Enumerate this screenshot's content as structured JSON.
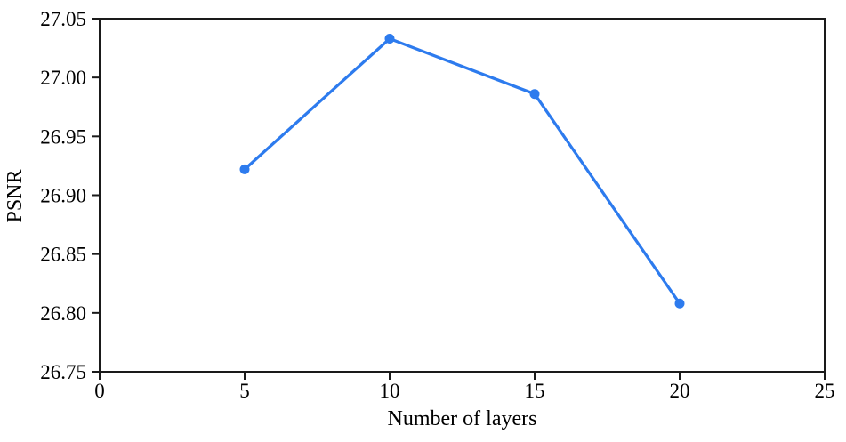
{
  "chart_data": {
    "type": "line",
    "title": "",
    "xlabel": "Number of layers",
    "ylabel": "PSNR",
    "x": [
      5,
      10,
      15,
      20
    ],
    "y": [
      26.922,
      27.033,
      26.986,
      26.808
    ],
    "series": [
      {
        "name": "PSNR",
        "x": [
          5,
          10,
          15,
          20
        ],
        "values": [
          26.922,
          27.033,
          26.986,
          26.808
        ]
      }
    ],
    "xlim": [
      0,
      25
    ],
    "ylim": [
      26.75,
      27.05
    ],
    "xticks": [
      0,
      5,
      10,
      15,
      20,
      25
    ],
    "xtick_labels": [
      "0",
      "5",
      "10",
      "15",
      "20",
      "25"
    ],
    "yticks": [
      26.75,
      26.8,
      26.85,
      26.9,
      26.95,
      27.0,
      27.05
    ],
    "ytick_labels": [
      "26.75",
      "26.80",
      "26.85",
      "26.90",
      "26.95",
      "27.00",
      "27.05"
    ],
    "grid": false,
    "legend_position": "none",
    "line_color": "#2d7bee",
    "marker": "circle",
    "marker_color": "#2d7bee",
    "frame_color": "#1a1a1a",
    "background_color": "#ffffff"
  }
}
